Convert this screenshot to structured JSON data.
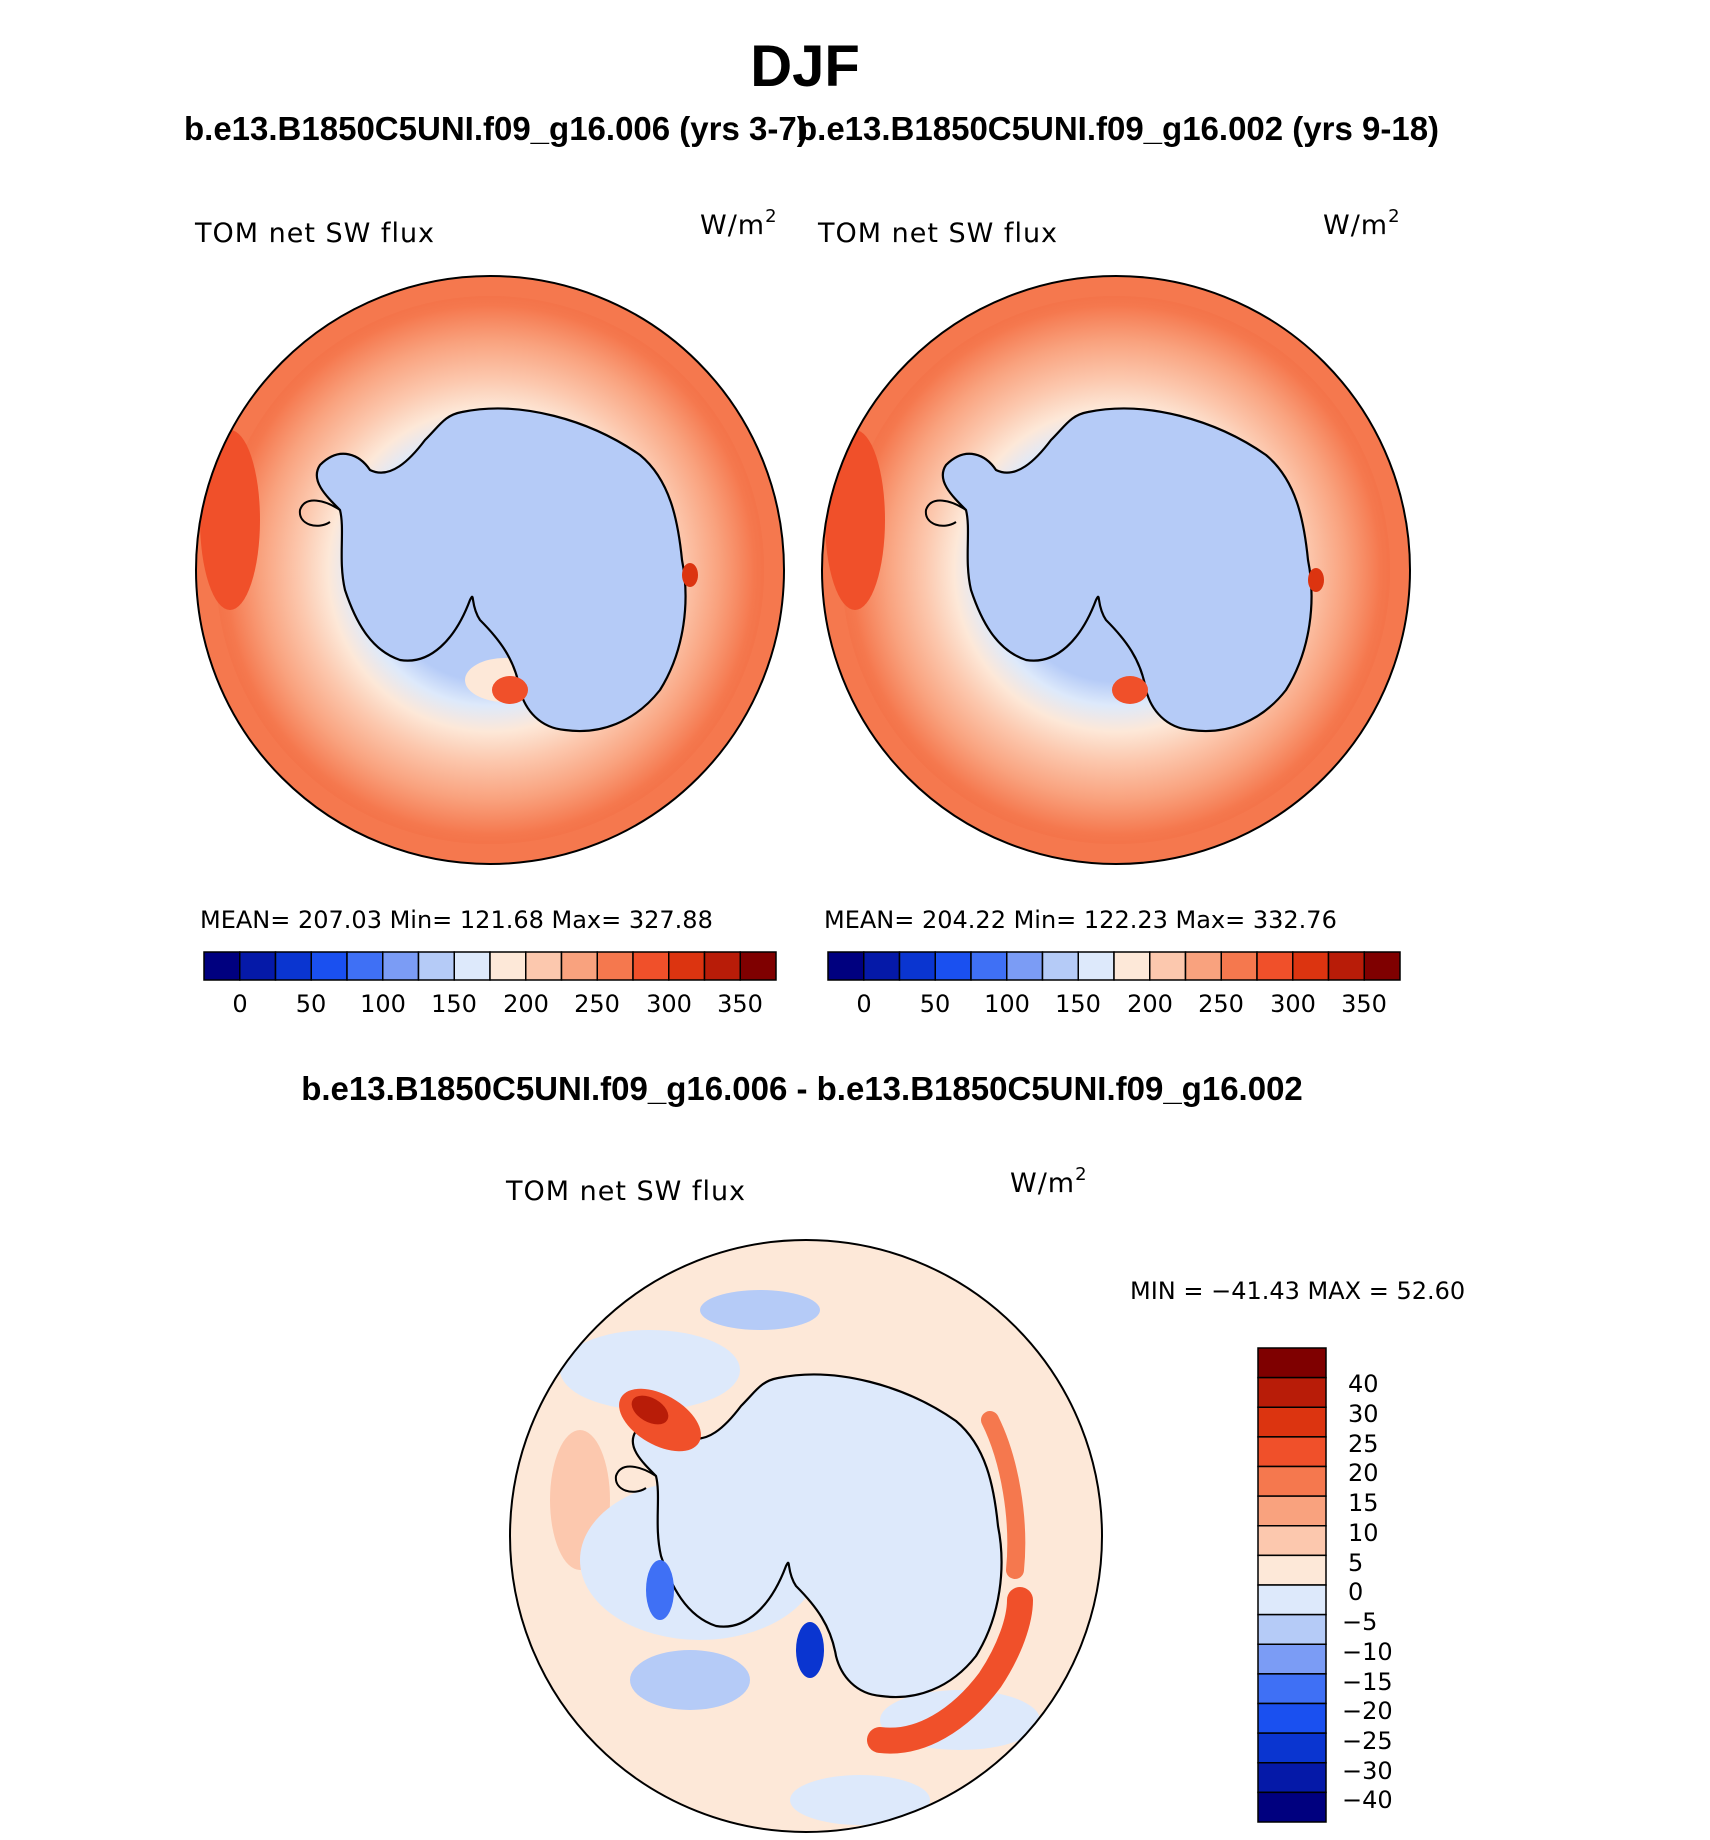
{
  "title": "DJF",
  "top_header": {
    "left_case": "b.e13.B1850C5UNI.f09_g16.006 (yrs 3-7)",
    "right_case": "b.e13.B1850C5UNI.f09_g16.002 (yrs 9-18)"
  },
  "diff_header": "b.e13.B1850C5UNI.f09_g16.006 - b.e13.B1850C5UNI.f09_g16.002",
  "panels": [
    {
      "variable": "TOM net SW flux",
      "units_base": "W/m",
      "units_exp": "2",
      "stats": "MEAN= 207.03    Min= 121.68    Max= 327.88",
      "colorbar_ticks": [
        "0",
        "50",
        "100",
        "150",
        "200",
        "250",
        "300",
        "350"
      ]
    },
    {
      "variable": "TOM net SW flux",
      "units_base": "W/m",
      "units_exp": "2",
      "stats": "MEAN= 204.22    Min= 122.23    Max= 332.76",
      "colorbar_ticks": [
        "0",
        "50",
        "100",
        "150",
        "200",
        "250",
        "300",
        "350"
      ]
    },
    {
      "variable": "TOM net SW flux",
      "units_base": "W/m",
      "units_exp": "2",
      "stats": "MIN = −41.43 MAX =   52.60",
      "colorbar_ticks": [
        "40",
        "30",
        "25",
        "20",
        "15",
        "10",
        "5",
        "0",
        "−5",
        "−10",
        "−15",
        "−20",
        "−25",
        "−30",
        "−40"
      ]
    }
  ],
  "colors": {
    "abs_scale": [
      "#00007f",
      "#0519a8",
      "#0a35d0",
      "#1a50f0",
      "#3f70f5",
      "#7b9cf5",
      "#b5cbf7",
      "#dde9fb",
      "#fde8d8",
      "#fcc8ae",
      "#f9a27e",
      "#f5784e",
      "#f0502a",
      "#dc3410",
      "#b81c08",
      "#7f0000"
    ],
    "diff_scale": [
      "#7f0000",
      "#b81c08",
      "#dc3410",
      "#f0502a",
      "#f5784e",
      "#f9a27e",
      "#fcc8ae",
      "#fde8d8",
      "#dde9fb",
      "#b5cbf7",
      "#7b9cf5",
      "#3f70f5",
      "#1a50f0",
      "#0a35d0",
      "#0519a8",
      "#00007f"
    ]
  }
}
